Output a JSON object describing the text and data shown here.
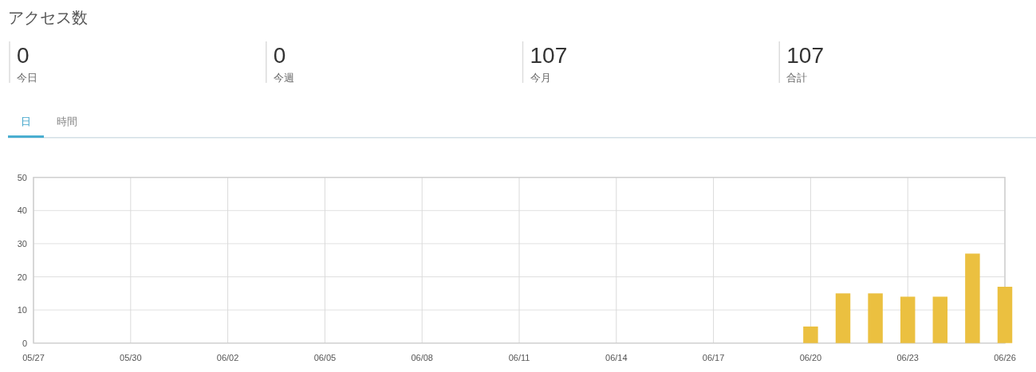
{
  "chart_data": [
    {
      "type": "other",
      "title": "アクセス数",
      "categories": [
        "今日",
        "今週",
        "今月",
        "合計"
      ],
      "values": [
        0,
        0,
        107,
        107
      ],
      "data_labels": true
    },
    {
      "type": "bar",
      "annotations": [
        "日",
        "時間"
      ],
      "x": [
        "--06-20",
        "--06-21",
        "--06-22",
        "--06-23",
        "--06-24",
        "--06-25",
        "--06-26"
      ],
      "values": [
        5,
        15,
        15,
        14,
        14,
        27,
        17
      ],
      "color": "#ebc040",
      "xlim": [
        "--05-27",
        "--06-26"
      ],
      "xticks": [
        {
          "value": "--05-27",
          "label": "05/27"
        },
        {
          "value": "--05-30",
          "label": "05/30"
        },
        {
          "value": "--06-02",
          "label": "06/02"
        },
        {
          "value": "--06-05",
          "label": "06/05"
        },
        {
          "value": "--06-08",
          "label": "06/08"
        },
        {
          "value": "--06-11",
          "label": "06/11"
        },
        {
          "value": "--06-14",
          "label": "06/14"
        },
        {
          "value": "--06-17",
          "label": "06/17"
        },
        {
          "value": "--06-20",
          "label": "06/20"
        },
        {
          "value": "--06-23",
          "label": "06/23"
        },
        {
          "value": "--06-26",
          "label": "06/26"
        }
      ],
      "ylim": [
        0,
        50
      ],
      "yticks": [
        0,
        10,
        20,
        30,
        40,
        50
      ],
      "grid": true
    }
  ]
}
